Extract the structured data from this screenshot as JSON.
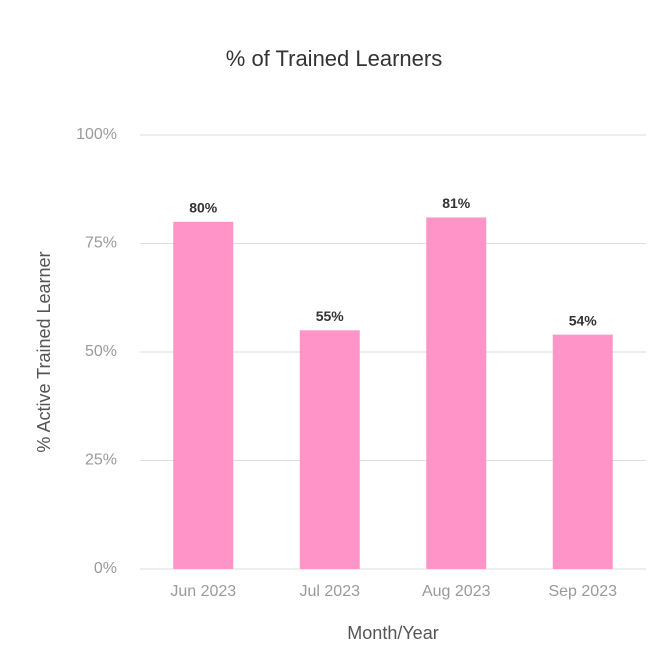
{
  "chart_data": {
    "type": "bar",
    "title": "% of Trained Learners",
    "x_label": "Month/Year",
    "y_label": "% Active Trained Learner",
    "categories": [
      "Jun 2023",
      "Jul 2023",
      "Aug 2023",
      "Sep 2023"
    ],
    "values": [
      80,
      55,
      81,
      54
    ],
    "value_labels": [
      "80%",
      "55%",
      "81%",
      "54%"
    ],
    "color": "#ff94c8",
    "ylim": [
      0,
      100
    ],
    "yticks": [
      {
        "value": 0,
        "label": "0%"
      },
      {
        "value": 25,
        "label": "25%"
      },
      {
        "value": 50,
        "label": "50%"
      },
      {
        "value": 75,
        "label": "75%"
      },
      {
        "value": 100,
        "label": "100%"
      }
    ],
    "grid": true
  }
}
